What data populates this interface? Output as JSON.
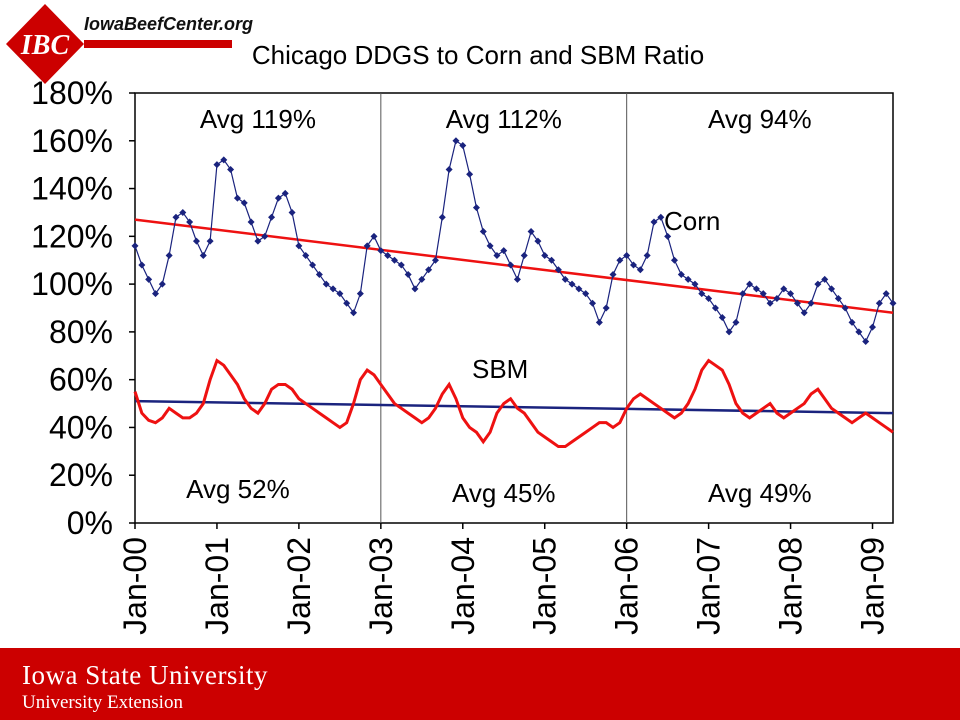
{
  "header": {
    "logo_mark": "IBC",
    "logo_text": "IowaBeefCenter.org"
  },
  "footer": {
    "university": "Iowa State University",
    "extension": "University Extension"
  },
  "colors": {
    "corn": "#1a237e",
    "sbm": "#ee1111",
    "corn_trend": "#ee1111",
    "sbm_trend": "#1a237e",
    "brand_red": "#cc0000"
  },
  "chart_data": {
    "type": "line",
    "title": "Chicago DDGS to Corn and SBM Ratio",
    "xlabel": "",
    "ylabel": "",
    "ylim": [
      0,
      180
    ],
    "y_ticks": [
      "0%",
      "20%",
      "40%",
      "60%",
      "80%",
      "100%",
      "120%",
      "140%",
      "160%",
      "180%"
    ],
    "x_ticks": [
      "Jan-00",
      "Jan-01",
      "Jan-02",
      "Jan-03",
      "Jan-04",
      "Jan-05",
      "Jan-06",
      "Jan-07",
      "Jan-08",
      "Jan-09"
    ],
    "x_range": [
      "2000-01",
      "2009-04"
    ],
    "grid": false,
    "period_dividers": [
      "Jan-03",
      "Jan-06"
    ],
    "annotations": [
      {
        "text": "Avg 119%",
        "period": 1,
        "row": "top"
      },
      {
        "text": "Avg 112%",
        "period": 2,
        "row": "top"
      },
      {
        "text": "Avg 94%",
        "period": 3,
        "row": "top"
      },
      {
        "text": "Avg 52%",
        "period": 1,
        "row": "bottom"
      },
      {
        "text": "Avg 45%",
        "period": 2,
        "row": "bottom"
      },
      {
        "text": "Avg 49%",
        "period": 3,
        "row": "bottom"
      }
    ],
    "series": [
      {
        "name": "Corn",
        "x": [
          "2000-01",
          "2000-02",
          "2000-03",
          "2000-04",
          "2000-05",
          "2000-06",
          "2000-07",
          "2000-08",
          "2000-09",
          "2000-10",
          "2000-11",
          "2000-12",
          "2001-01",
          "2001-02",
          "2001-03",
          "2001-04",
          "2001-05",
          "2001-06",
          "2001-07",
          "2001-08",
          "2001-09",
          "2001-10",
          "2001-11",
          "2001-12",
          "2002-01",
          "2002-02",
          "2002-03",
          "2002-04",
          "2002-05",
          "2002-06",
          "2002-07",
          "2002-08",
          "2002-09",
          "2002-10",
          "2002-11",
          "2002-12",
          "2003-01",
          "2003-02",
          "2003-03",
          "2003-04",
          "2003-05",
          "2003-06",
          "2003-07",
          "2003-08",
          "2003-09",
          "2003-10",
          "2003-11",
          "2003-12",
          "2004-01",
          "2004-02",
          "2004-03",
          "2004-04",
          "2004-05",
          "2004-06",
          "2004-07",
          "2004-08",
          "2004-09",
          "2004-10",
          "2004-11",
          "2004-12",
          "2005-01",
          "2005-02",
          "2005-03",
          "2005-04",
          "2005-05",
          "2005-06",
          "2005-07",
          "2005-08",
          "2005-09",
          "2005-10",
          "2005-11",
          "2005-12",
          "2006-01",
          "2006-02",
          "2006-03",
          "2006-04",
          "2006-05",
          "2006-06",
          "2006-07",
          "2006-08",
          "2006-09",
          "2006-10",
          "2006-11",
          "2006-12",
          "2007-01",
          "2007-02",
          "2007-03",
          "2007-04",
          "2007-05",
          "2007-06",
          "2007-07",
          "2007-08",
          "2007-09",
          "2007-10",
          "2007-11",
          "2007-12",
          "2008-01",
          "2008-02",
          "2008-03",
          "2008-04",
          "2008-05",
          "2008-06",
          "2008-07",
          "2008-08",
          "2008-09",
          "2008-10",
          "2008-11",
          "2008-12",
          "2009-01",
          "2009-02",
          "2009-03",
          "2009-04"
        ],
        "values": [
          116,
          108,
          102,
          96,
          100,
          112,
          128,
          130,
          126,
          118,
          112,
          118,
          150,
          152,
          148,
          136,
          134,
          126,
          118,
          120,
          128,
          136,
          138,
          130,
          116,
          112,
          108,
          104,
          100,
          98,
          96,
          92,
          88,
          96,
          116,
          120,
          114,
          112,
          110,
          108,
          104,
          98,
          102,
          106,
          110,
          128,
          148,
          160,
          158,
          146,
          132,
          122,
          116,
          112,
          114,
          108,
          102,
          112,
          122,
          118,
          112,
          110,
          106,
          102,
          100,
          98,
          96,
          92,
          84,
          90,
          104,
          110,
          112,
          108,
          106,
          112,
          126,
          128,
          120,
          110,
          104,
          102,
          100,
          96,
          94,
          90,
          86,
          80,
          84,
          96,
          100,
          98,
          96,
          92,
          94,
          98,
          96,
          92,
          88,
          92,
          100,
          102,
          98,
          94,
          90,
          84,
          80,
          76,
          82,
          92,
          96,
          92
        ]
      },
      {
        "name": "SBM",
        "x": [
          "2000-01",
          "2000-02",
          "2000-03",
          "2000-04",
          "2000-05",
          "2000-06",
          "2000-07",
          "2000-08",
          "2000-09",
          "2000-10",
          "2000-11",
          "2000-12",
          "2001-01",
          "2001-02",
          "2001-03",
          "2001-04",
          "2001-05",
          "2001-06",
          "2001-07",
          "2001-08",
          "2001-09",
          "2001-10",
          "2001-11",
          "2001-12",
          "2002-01",
          "2002-02",
          "2002-03",
          "2002-04",
          "2002-05",
          "2002-06",
          "2002-07",
          "2002-08",
          "2002-09",
          "2002-10",
          "2002-11",
          "2002-12",
          "2003-01",
          "2003-02",
          "2003-03",
          "2003-04",
          "2003-05",
          "2003-06",
          "2003-07",
          "2003-08",
          "2003-09",
          "2003-10",
          "2003-11",
          "2003-12",
          "2004-01",
          "2004-02",
          "2004-03",
          "2004-04",
          "2004-05",
          "2004-06",
          "2004-07",
          "2004-08",
          "2004-09",
          "2004-10",
          "2004-11",
          "2004-12",
          "2005-01",
          "2005-02",
          "2005-03",
          "2005-04",
          "2005-05",
          "2005-06",
          "2005-07",
          "2005-08",
          "2005-09",
          "2005-10",
          "2005-11",
          "2005-12",
          "2006-01",
          "2006-02",
          "2006-03",
          "2006-04",
          "2006-05",
          "2006-06",
          "2006-07",
          "2006-08",
          "2006-09",
          "2006-10",
          "2006-11",
          "2006-12",
          "2007-01",
          "2007-02",
          "2007-03",
          "2007-04",
          "2007-05",
          "2007-06",
          "2007-07",
          "2007-08",
          "2007-09",
          "2007-10",
          "2007-11",
          "2007-12",
          "2008-01",
          "2008-02",
          "2008-03",
          "2008-04",
          "2008-05",
          "2008-06",
          "2008-07",
          "2008-08",
          "2008-09",
          "2008-10",
          "2008-11",
          "2008-12",
          "2009-01",
          "2009-02",
          "2009-03",
          "2009-04"
        ],
        "values": [
          55,
          46,
          43,
          42,
          44,
          48,
          46,
          44,
          44,
          46,
          50,
          60,
          68,
          66,
          62,
          58,
          52,
          48,
          46,
          50,
          56,
          58,
          58,
          56,
          52,
          50,
          48,
          46,
          44,
          42,
          40,
          42,
          50,
          60,
          64,
          62,
          58,
          54,
          50,
          48,
          46,
          44,
          42,
          44,
          48,
          54,
          58,
          52,
          44,
          40,
          38,
          34,
          38,
          46,
          50,
          52,
          48,
          46,
          42,
          38,
          36,
          34,
          32,
          32,
          34,
          36,
          38,
          40,
          42,
          42,
          40,
          42,
          48,
          52,
          54,
          52,
          50,
          48,
          46,
          44,
          46,
          50,
          56,
          64,
          68,
          66,
          64,
          58,
          50,
          46,
          44,
          46,
          48,
          50,
          46,
          44,
          46,
          48,
          50,
          54,
          56,
          52,
          48,
          46,
          44,
          42,
          44,
          46,
          44,
          42,
          40,
          38
        ]
      }
    ],
    "trendlines": [
      {
        "series": "Corn",
        "start": 127,
        "end": 88
      },
      {
        "series": "SBM",
        "start": 51,
        "end": 46
      }
    ],
    "series_labels": [
      {
        "text": "Corn",
        "series": "Corn"
      },
      {
        "text": "SBM",
        "series": "SBM"
      }
    ]
  }
}
